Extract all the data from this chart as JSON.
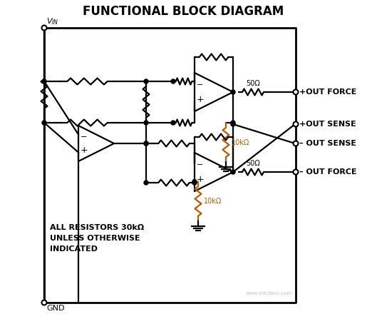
{
  "title": "FUNCTIONAL BLOCK DIAGRAM",
  "title_fontsize": 12,
  "background_color": "#ffffff",
  "line_color": "#000000",
  "orange_color": "#b85a00",
  "labels": {
    "vin": "V_IN",
    "gnd": "GND",
    "out_force_pos": "+OUT FORCE",
    "out_sense_pos": "+OUT SENSE",
    "out_sense_neg": "– OUT SENSE",
    "out_force_neg": "– OUT FORCE",
    "note1": "ALL RESISTORS 30kΩ",
    "note2": "UNLESS OTHERWISE",
    "note3": "INDICATED",
    "res_10k": "10kΩ",
    "res_50": "50Ω"
  },
  "figsize": [
    5.15,
    4.54
  ],
  "dpi": 100
}
